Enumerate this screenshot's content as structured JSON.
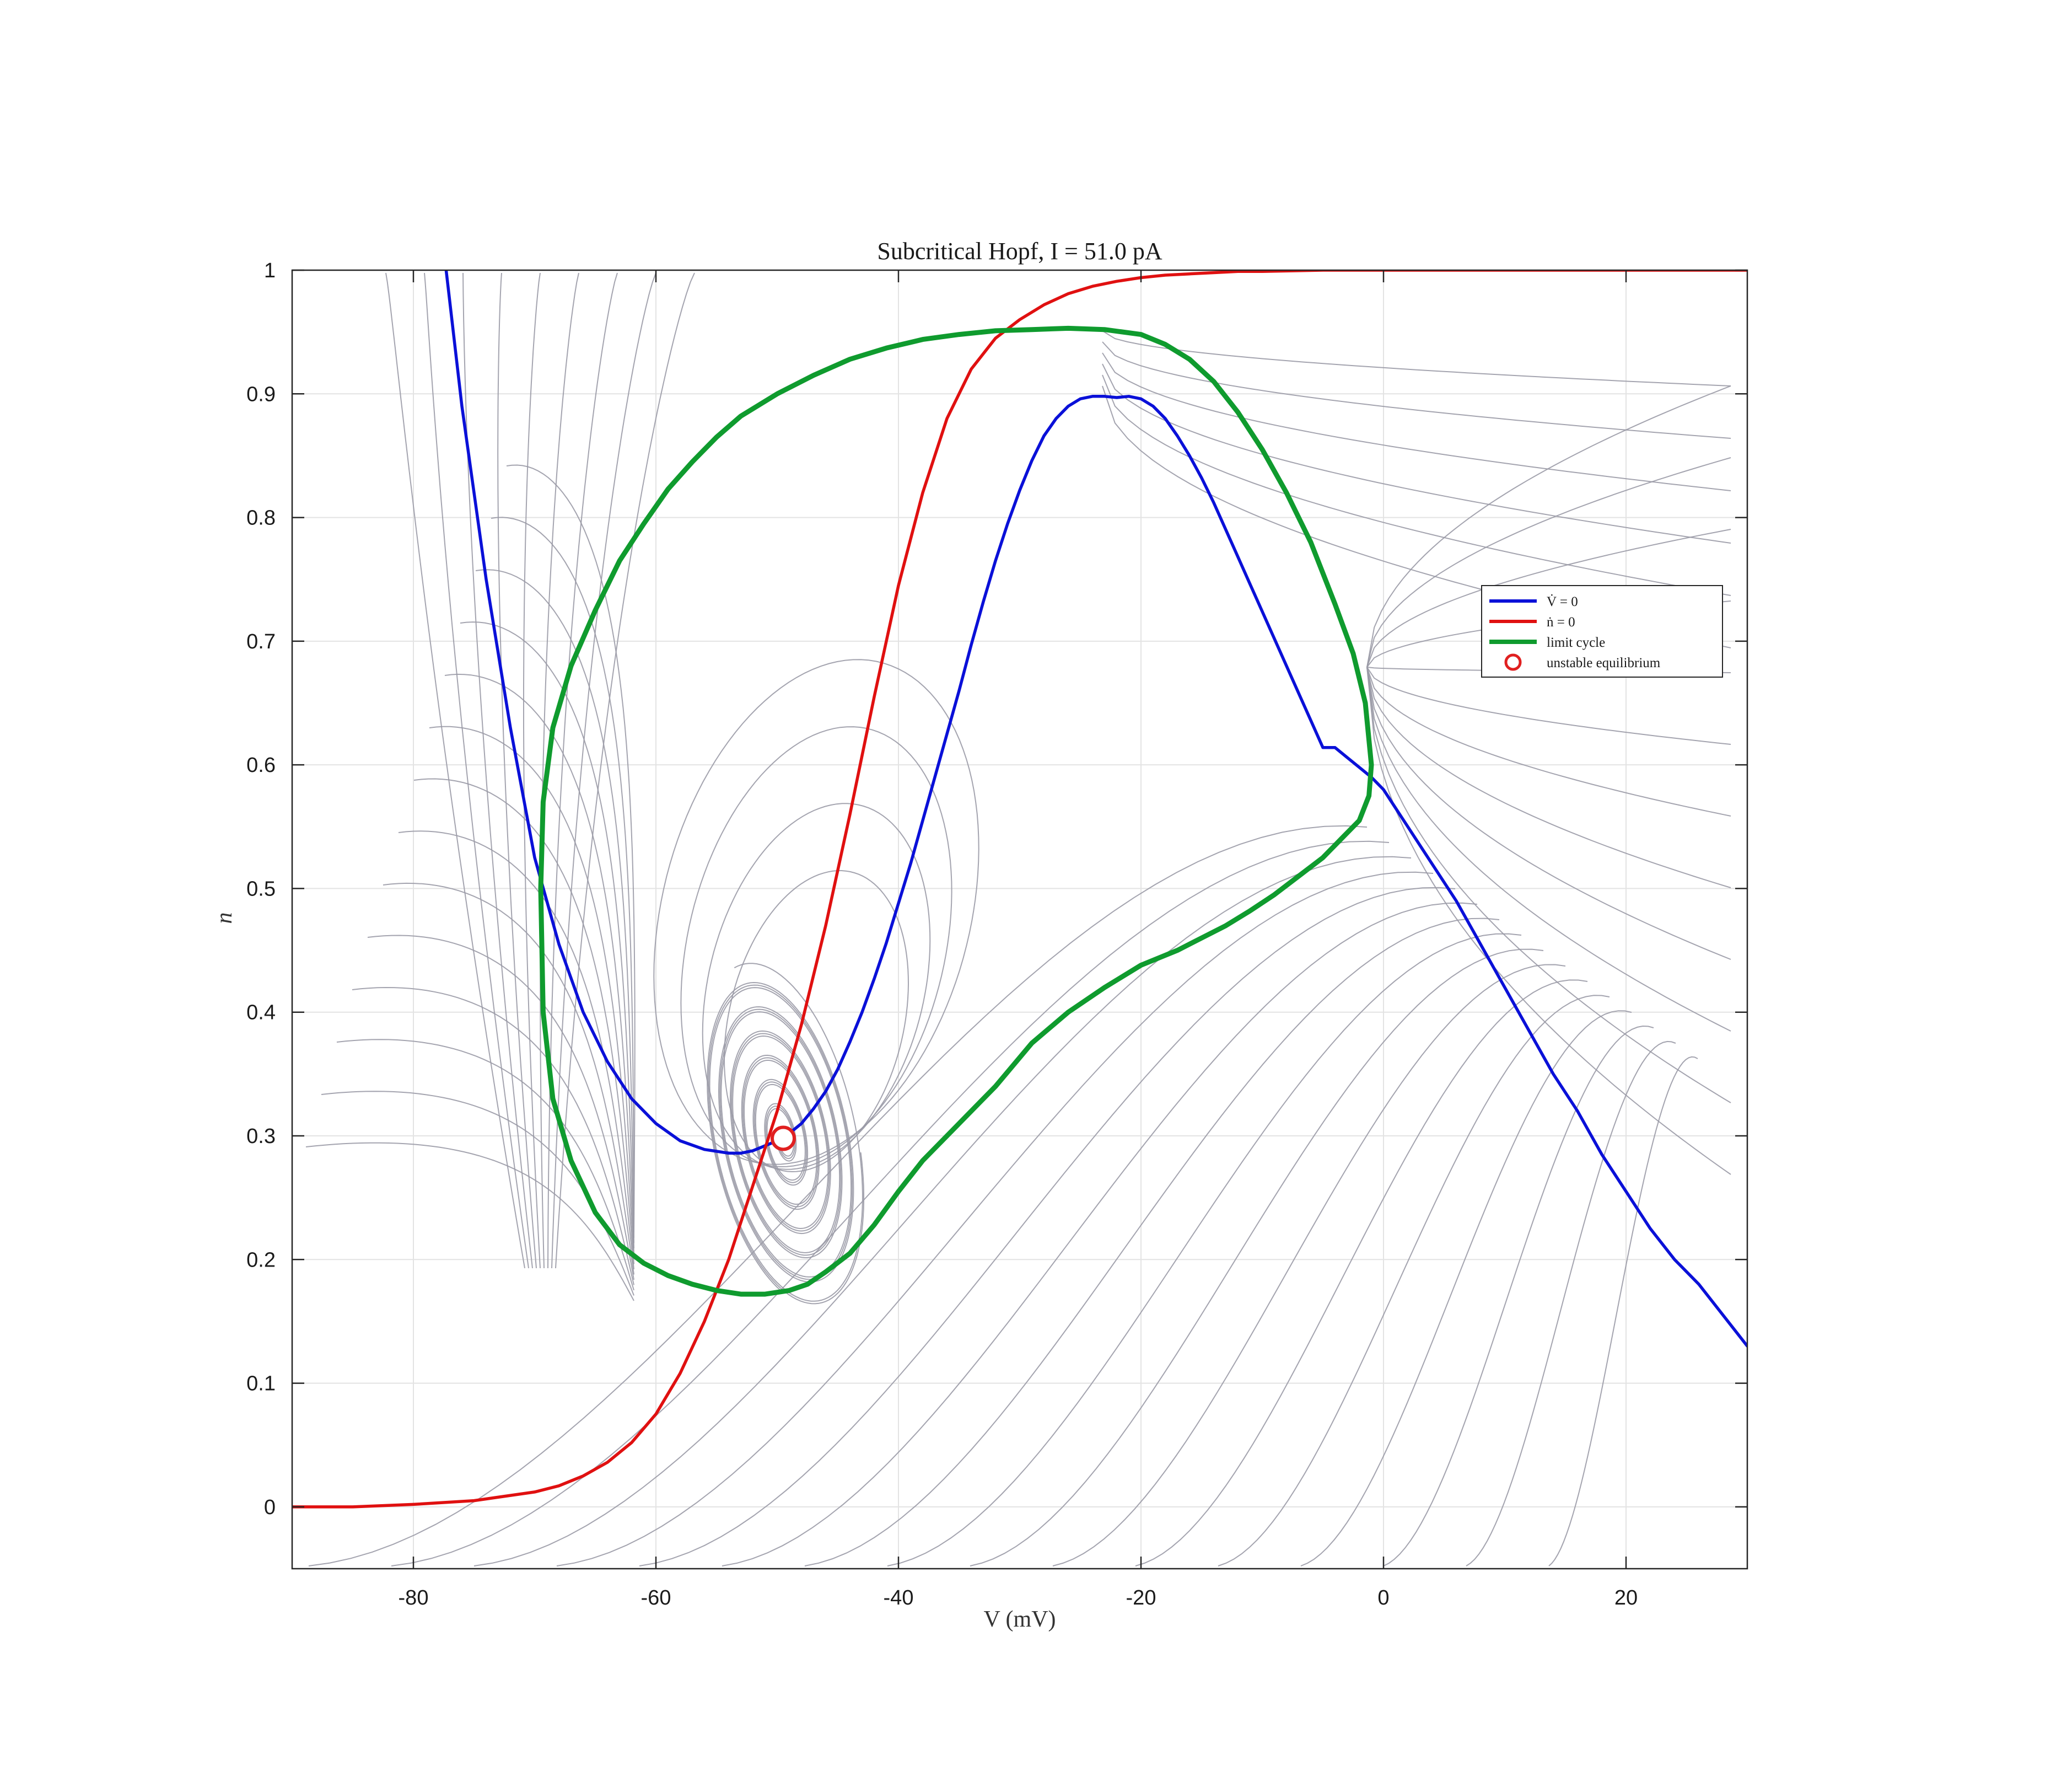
{
  "chart_data": {
    "type": "line",
    "title": "Subcritical Hopf, I = 51.0 pA",
    "xlabel": "V (mV)",
    "ylabel": "n",
    "xlim": [
      -90,
      30
    ],
    "ylim": [
      -0.05,
      1.0
    ],
    "xticks": [
      -80,
      -60,
      -40,
      -20,
      0,
      20
    ],
    "yticks": [
      0,
      0.1,
      0.2,
      0.3,
      0.4,
      0.5,
      0.6,
      0.7,
      0.8,
      0.9,
      1
    ],
    "grid": true,
    "legend_placement": "right",
    "legend": [
      {
        "label": "V̇ = 0",
        "color": "#0a10d8",
        "kind": "line"
      },
      {
        "label": "ṅ = 0",
        "color": "#e01010",
        "kind": "line"
      },
      {
        "label": "limit cycle",
        "color": "#0f9b2e",
        "kind": "line"
      },
      {
        "label": "unstable equilibrium",
        "color": "#e02020",
        "kind": "marker"
      }
    ],
    "series": [
      {
        "role": "V-nullcline",
        "color": "#0a10d8",
        "x": [
          -77.3,
          -76,
          -74,
          -72,
          -70,
          -68,
          -66,
          -64,
          -62,
          -60,
          -58,
          -56,
          -54,
          -53,
          -52,
          -51,
          -50,
          -49,
          -48,
          -47,
          -46,
          -45,
          -44,
          -43,
          -42,
          -41,
          -40,
          -39,
          -38,
          -37,
          -36,
          -35,
          -34,
          -33,
          -32,
          -31,
          -30,
          -29,
          -28,
          -27,
          -26,
          -25,
          -24,
          -23,
          -22,
          -21,
          -20,
          -19,
          -18,
          -17,
          -16,
          -15,
          -14,
          -13,
          -12,
          -11,
          -10,
          -9,
          -8,
          -7,
          -6,
          -5,
          -4,
          -3,
          -2,
          -1,
          0,
          2,
          4,
          6,
          8,
          10,
          12,
          14,
          16,
          18,
          20,
          22,
          24,
          26,
          28,
          30
        ],
        "y": [
          1.0,
          0.89,
          0.75,
          0.63,
          0.525,
          0.455,
          0.4,
          0.36,
          0.33,
          0.31,
          0.296,
          0.289,
          0.286,
          0.286,
          0.288,
          0.292,
          0.296,
          0.302,
          0.31,
          0.322,
          0.336,
          0.354,
          0.376,
          0.4,
          0.427,
          0.456,
          0.488,
          0.52,
          0.555,
          0.59,
          0.625,
          0.66,
          0.697,
          0.732,
          0.765,
          0.795,
          0.822,
          0.846,
          0.866,
          0.88,
          0.89,
          0.896,
          0.898,
          0.898,
          0.897,
          0.898,
          0.896,
          0.89,
          0.88,
          0.866,
          0.85,
          0.832,
          0.812,
          0.79,
          0.768,
          0.746,
          0.724,
          0.702,
          0.68,
          0.658,
          0.636,
          0.614,
          0.614,
          0.606,
          0.598,
          0.59,
          0.58,
          0.55,
          0.52,
          0.49,
          0.455,
          0.42,
          0.385,
          0.35,
          0.32,
          0.285,
          0.255,
          0.225,
          0.2,
          0.18,
          0.155,
          0.13
        ]
      },
      {
        "role": "n-nullcline",
        "color": "#e01010",
        "x": [
          -90,
          -85,
          -80,
          -75,
          -70,
          -68,
          -66,
          -64,
          -62,
          -60,
          -58,
          -56,
          -54,
          -52,
          -50,
          -48,
          -46,
          -44,
          -42,
          -40,
          -38,
          -36,
          -34,
          -32,
          -30,
          -28,
          -26,
          -24,
          -22,
          -20,
          -18,
          -16,
          -14,
          -12,
          -10,
          -5,
          0,
          10,
          20,
          30
        ],
        "y": [
          0.0,
          0.0,
          0.002,
          0.005,
          0.012,
          0.017,
          0.025,
          0.036,
          0.052,
          0.075,
          0.108,
          0.15,
          0.2,
          0.26,
          0.32,
          0.39,
          0.47,
          0.56,
          0.655,
          0.745,
          0.82,
          0.88,
          0.92,
          0.945,
          0.96,
          0.972,
          0.981,
          0.987,
          0.991,
          0.994,
          0.996,
          0.997,
          0.998,
          0.999,
          0.999,
          1.0,
          1.0,
          1.0,
          1.0,
          1.0
        ]
      },
      {
        "role": "limit-cycle",
        "color": "#0f9b2e",
        "x": [
          -49,
          -51,
          -53,
          -55,
          -57,
          -59,
          -61,
          -63,
          -65,
          -67,
          -68.5,
          -69.3,
          -69.5,
          -69.3,
          -68.5,
          -67,
          -65,
          -63,
          -61,
          -59,
          -57,
          -55,
          -53,
          -50,
          -47,
          -44,
          -41,
          -38,
          -35,
          -32,
          -29,
          -26,
          -23,
          -20,
          -18,
          -16,
          -14,
          -12,
          -10,
          -8,
          -6,
          -4,
          -2.5,
          -1.5,
          -1,
          -1.2,
          -2,
          -3.5,
          -5,
          -7,
          -9,
          -11,
          -13,
          -15,
          -17,
          -20,
          -23,
          -26,
          -29,
          -32,
          -35,
          -38,
          -40,
          -42,
          -44,
          -46,
          -47.5,
          -49
        ],
        "y": [
          0.175,
          0.172,
          0.172,
          0.175,
          0.18,
          0.187,
          0.197,
          0.212,
          0.238,
          0.28,
          0.33,
          0.4,
          0.5,
          0.57,
          0.63,
          0.68,
          0.725,
          0.765,
          0.795,
          0.823,
          0.845,
          0.865,
          0.882,
          0.9,
          0.915,
          0.928,
          0.937,
          0.944,
          0.948,
          0.951,
          0.952,
          0.953,
          0.952,
          0.948,
          0.94,
          0.928,
          0.91,
          0.885,
          0.855,
          0.82,
          0.78,
          0.73,
          0.69,
          0.65,
          0.6,
          0.575,
          0.555,
          0.54,
          0.525,
          0.51,
          0.495,
          0.482,
          0.47,
          0.46,
          0.45,
          0.438,
          0.42,
          0.4,
          0.375,
          0.34,
          0.31,
          0.28,
          0.255,
          0.228,
          0.205,
          0.19,
          0.18,
          0.175
        ]
      }
    ],
    "equilibrium": {
      "label": "unstable equilibrium",
      "V": -49.5,
      "n": 0.298
    }
  }
}
